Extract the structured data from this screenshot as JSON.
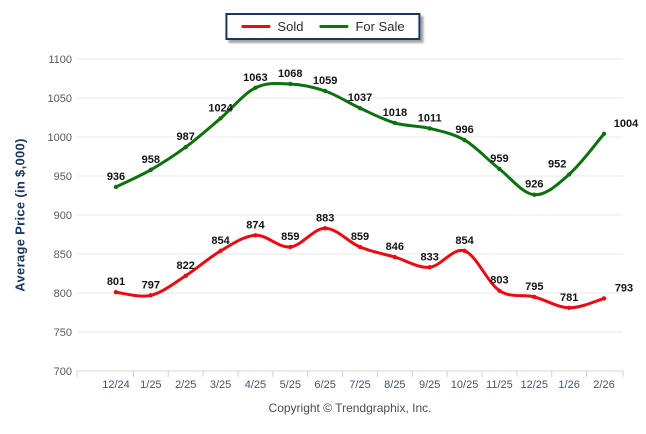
{
  "legend": {
    "items": [
      {
        "id": "sold",
        "label": "Sold",
        "color": "#e80c12"
      },
      {
        "id": "for-sale",
        "label": "For Sale",
        "color": "#0e700e"
      }
    ]
  },
  "chart_data": {
    "type": "line",
    "categories": [
      "12/24",
      "1/25",
      "2/25",
      "3/25",
      "4/25",
      "5/25",
      "6/25",
      "7/25",
      "8/25",
      "9/25",
      "10/25",
      "11/25",
      "12/25",
      "1/26",
      "2/26"
    ],
    "series": [
      {
        "name": "Sold",
        "color": "#e80c12",
        "values": [
          801,
          797,
          822,
          854,
          874,
          859,
          883,
          859,
          846,
          833,
          854,
          803,
          795,
          781,
          793
        ]
      },
      {
        "name": "For Sale",
        "color": "#0e700e",
        "values": [
          936,
          958,
          987,
          1024,
          1063,
          1068,
          1059,
          1037,
          1018,
          1011,
          996,
          959,
          926,
          952,
          1004
        ]
      }
    ],
    "title": "",
    "xlabel": "",
    "ylabel": "Average Price (in $,000)",
    "ylim": [
      700,
      1100
    ],
    "ytick_step": 50,
    "yticks": [
      700,
      750,
      800,
      850,
      900,
      950,
      1000,
      1050,
      1100
    ],
    "grid": true,
    "legend_position": "top",
    "smooth": true,
    "data_labels": true
  },
  "footer": {
    "text": "Copyright © Trendgraphix, Inc."
  },
  "colors": {
    "grid": "#e7e7e7",
    "axis_line": "#d9d9d9",
    "tick": "#cfcfcf",
    "x_tick_label": "#44546a",
    "y_tick_label": "#595959",
    "data_label": "#141414",
    "axis_title": "#17375e"
  }
}
